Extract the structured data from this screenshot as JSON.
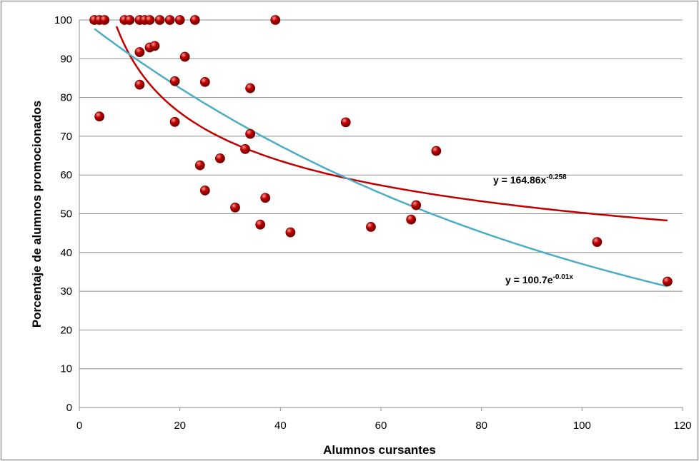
{
  "chart_data": {
    "type": "scatter",
    "xlabel": "Alumnos cursantes",
    "ylabel": "Porcentaje de alumnos promocionados",
    "xlim": [
      0,
      120
    ],
    "ylim": [
      0,
      100
    ],
    "x_ticks": [
      "0",
      "20",
      "40",
      "60",
      "80",
      "100",
      "120"
    ],
    "y_ticks": [
      "0",
      "10",
      "20",
      "30",
      "40",
      "50",
      "60",
      "70",
      "80",
      "90",
      "100"
    ],
    "grid": "horizontal",
    "point_color": "#c00000",
    "points": [
      {
        "x": 3,
        "y": 100
      },
      {
        "x": 4,
        "y": 100
      },
      {
        "x": 5,
        "y": 100
      },
      {
        "x": 9,
        "y": 100
      },
      {
        "x": 10,
        "y": 100
      },
      {
        "x": 12,
        "y": 100
      },
      {
        "x": 13,
        "y": 100
      },
      {
        "x": 14,
        "y": 100
      },
      {
        "x": 16,
        "y": 100
      },
      {
        "x": 18,
        "y": 100
      },
      {
        "x": 20,
        "y": 100
      },
      {
        "x": 23,
        "y": 100
      },
      {
        "x": 39,
        "y": 100
      },
      {
        "x": 4,
        "y": 75.1
      },
      {
        "x": 12,
        "y": 91.7
      },
      {
        "x": 12,
        "y": 83.3
      },
      {
        "x": 14,
        "y": 92.9
      },
      {
        "x": 15,
        "y": 93.3
      },
      {
        "x": 19,
        "y": 84.2
      },
      {
        "x": 19,
        "y": 73.7
      },
      {
        "x": 21,
        "y": 90.5
      },
      {
        "x": 24,
        "y": 62.5
      },
      {
        "x": 25,
        "y": 84.0
      },
      {
        "x": 25,
        "y": 56.0
      },
      {
        "x": 28,
        "y": 64.3
      },
      {
        "x": 31,
        "y": 51.6
      },
      {
        "x": 33,
        "y": 66.7
      },
      {
        "x": 34,
        "y": 82.4
      },
      {
        "x": 34,
        "y": 70.6
      },
      {
        "x": 36,
        "y": 47.2
      },
      {
        "x": 37,
        "y": 54.1
      },
      {
        "x": 42,
        "y": 45.2
      },
      {
        "x": 53,
        "y": 73.6
      },
      {
        "x": 58,
        "y": 46.6
      },
      {
        "x": 66,
        "y": 48.5
      },
      {
        "x": 67,
        "y": 52.2
      },
      {
        "x": 71,
        "y": 66.2
      },
      {
        "x": 103,
        "y": 42.7
      },
      {
        "x": 117,
        "y": 32.5
      }
    ],
    "trendlines": [
      {
        "model": "power",
        "a": 164.86,
        "b": -0.258,
        "x_range": [
          7.4,
          117
        ],
        "color": "#c00000",
        "label_main": "y = 164.86x",
        "label_sup": "-0.258"
      },
      {
        "model": "exponential",
        "a": 100.7,
        "b": -0.01,
        "x_range": [
          3,
          117
        ],
        "color": "#4bacc6",
        "label_main": "y = 100.7e",
        "label_sup": "-0.01x"
      }
    ]
  }
}
